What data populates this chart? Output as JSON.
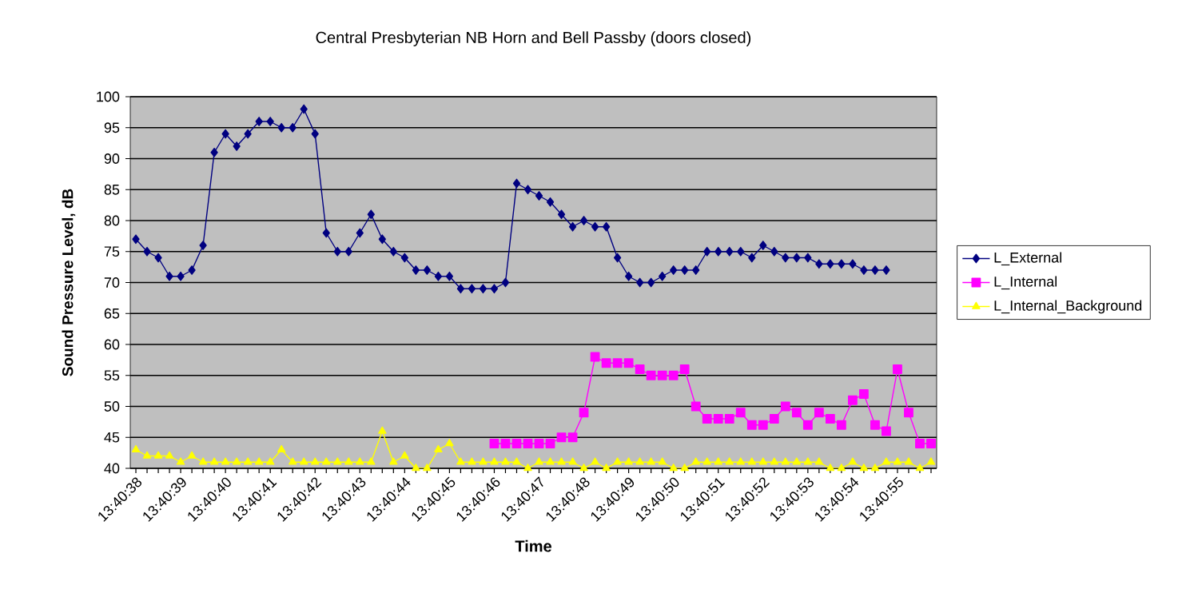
{
  "chart_data": {
    "type": "line",
    "title": "Central Presbyterian NB Horn and Bell Passby (doors closed)",
    "xlabel": "Time",
    "ylabel": "Sound Pressure Level, dB",
    "categories": [
      "13:40:38",
      null,
      null,
      null,
      "13:40:39",
      null,
      null,
      null,
      "13:40:40",
      null,
      null,
      null,
      "13:40:41",
      null,
      null,
      null,
      "13:40:42",
      null,
      null,
      null,
      "13:40:43",
      null,
      null,
      null,
      "13:40:44",
      null,
      null,
      null,
      "13:40:45",
      null,
      null,
      null,
      "13:40:46",
      null,
      null,
      null,
      "13:40:47",
      null,
      null,
      null,
      "13:40:48",
      null,
      null,
      null,
      "13:40:49",
      null,
      null,
      null,
      "13:40:50",
      null,
      null,
      null,
      "13:40:51",
      null,
      null,
      null,
      "13:40:52",
      null,
      null,
      null,
      "13:40:53",
      null,
      null,
      null,
      "13:40:54",
      null,
      null,
      null,
      "13:40:55",
      null,
      null,
      null
    ],
    "series": [
      {
        "name": "L_External",
        "color": "#000080",
        "marker": "diamond",
        "values": [
          77,
          75,
          74,
          71,
          71,
          72,
          76,
          91,
          94,
          92,
          94,
          96,
          96,
          95,
          95,
          98,
          94,
          78,
          75,
          75,
          78,
          81,
          77,
          75,
          74,
          72,
          72,
          71,
          71,
          69,
          69,
          69,
          69,
          70,
          86,
          85,
          84,
          83,
          81,
          79,
          80,
          79,
          79,
          74,
          71,
          70,
          70,
          71,
          72,
          72,
          72,
          75,
          75,
          75,
          75,
          74,
          76,
          75,
          74,
          74,
          74,
          73,
          73,
          73,
          73,
          72,
          72,
          72,
          null,
          null,
          null,
          null
        ]
      },
      {
        "name": "L_Internal",
        "color": "#ff00ff",
        "marker": "square",
        "values": [
          null,
          null,
          null,
          null,
          null,
          null,
          null,
          null,
          null,
          null,
          null,
          null,
          null,
          null,
          null,
          null,
          null,
          null,
          null,
          null,
          null,
          null,
          null,
          null,
          null,
          null,
          null,
          null,
          null,
          null,
          null,
          null,
          44,
          44,
          44,
          44,
          44,
          44,
          45,
          45,
          49,
          58,
          57,
          57,
          57,
          56,
          55,
          55,
          55,
          56,
          50,
          48,
          48,
          48,
          49,
          47,
          47,
          48,
          50,
          49,
          47,
          49,
          48,
          47,
          51,
          52,
          47,
          46,
          56,
          49,
          44,
          44
        ]
      },
      {
        "name": "L_Internal_Background",
        "color": "#ffff00",
        "marker": "triangle",
        "values": [
          43,
          42,
          42,
          42,
          41,
          42,
          41,
          41,
          41,
          41,
          41,
          41,
          41,
          43,
          41,
          41,
          41,
          41,
          41,
          41,
          41,
          41,
          46,
          41,
          42,
          40,
          40,
          43,
          44,
          41,
          41,
          41,
          41,
          41,
          41,
          40,
          41,
          41,
          41,
          41,
          40,
          41,
          40,
          41,
          41,
          41,
          41,
          41,
          40,
          40,
          41,
          41,
          41,
          41,
          41,
          41,
          41,
          41,
          41,
          41,
          41,
          41,
          40,
          40,
          41,
          40,
          40,
          41,
          41,
          41,
          40,
          41
        ]
      }
    ],
    "ylim": [
      40,
      100
    ],
    "yticks": [
      40,
      45,
      50,
      55,
      60,
      65,
      70,
      75,
      80,
      85,
      90,
      95,
      100
    ],
    "grid": "y",
    "legend": "right",
    "line_style": "solid"
  }
}
